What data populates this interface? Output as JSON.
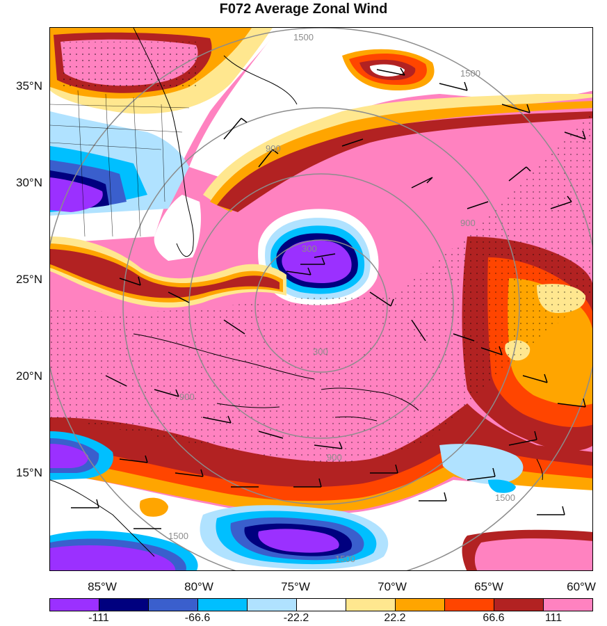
{
  "title": "F072 Average Zonal Wind",
  "lat_labels": [
    "35°N",
    "30°N",
    "25°N",
    "20°N",
    "15°N"
  ],
  "lon_labels": [
    "85°W",
    "80°W",
    "75°W",
    "70°W",
    "65°W",
    "60°W"
  ],
  "colorbar": {
    "colors": [
      "#9b30ff",
      "#00007f",
      "#3a5fcd",
      "#00bfff",
      "#b0e2ff",
      "#ffffff",
      "#ffe78f",
      "#ffa500",
      "#ff4500",
      "#b22222",
      "#ff82c0"
    ],
    "labels": [
      "-111",
      "-66.6",
      "-22.2",
      "22.2",
      "66.6",
      "111"
    ]
  },
  "contour_labels": [
    "1500",
    "1500",
    "900",
    "900",
    "300",
    "300",
    "900",
    "900",
    "1500",
    "1500",
    "1500"
  ],
  "map_features": [
    "range-rings",
    "wind-barbs",
    "stippling",
    "coastlines"
  ]
}
